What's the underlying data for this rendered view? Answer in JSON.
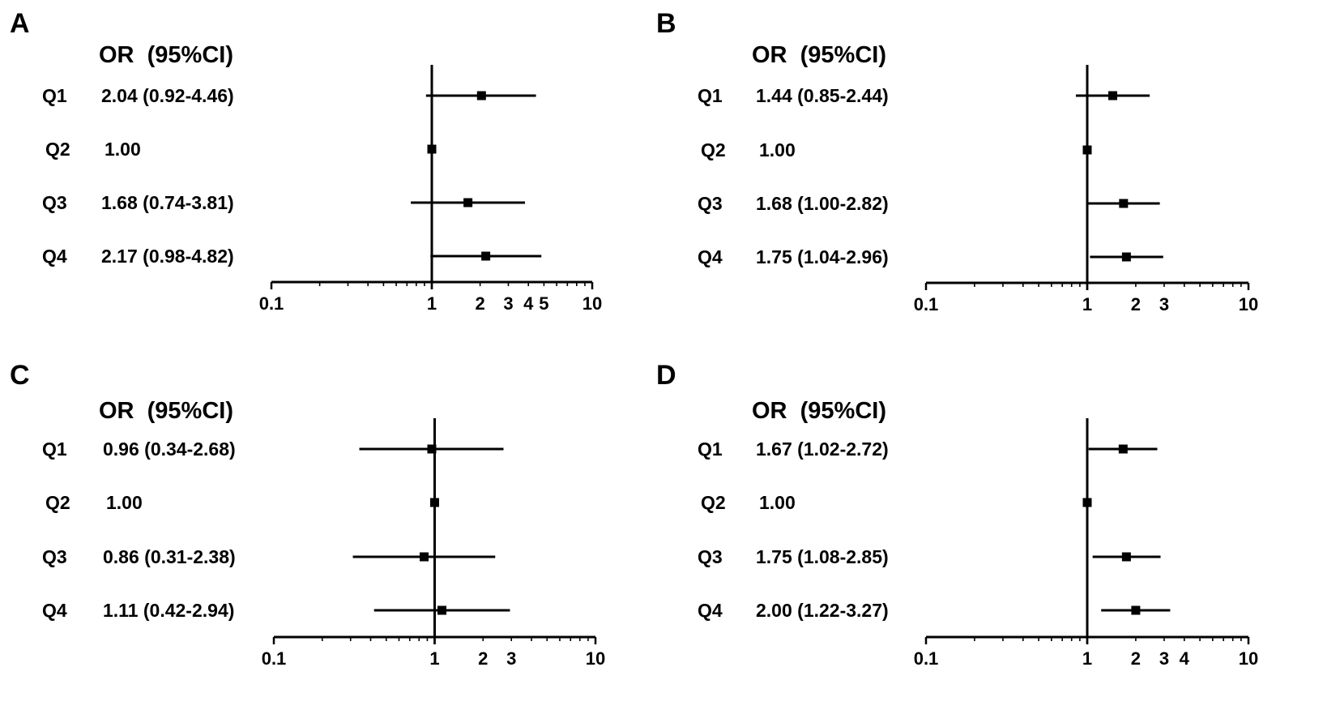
{
  "chart_data": [
    {
      "type": "forest",
      "panel": "A",
      "header": "OR  (95%CI)",
      "scale": "log",
      "xlim": [
        0.1,
        10
      ],
      "reference_line": 1,
      "tick_labels": [
        "0.1",
        "1",
        "2",
        "3",
        "4",
        "5",
        "10"
      ],
      "rows": [
        {
          "label": "Q1",
          "text": "2.04 (0.92-4.46)",
          "or": 2.04,
          "lo": 0.92,
          "hi": 4.46
        },
        {
          "label": "Q2",
          "text": "1.00",
          "or": 1.0,
          "lo": 1.0,
          "hi": 1.0
        },
        {
          "label": "Q3",
          "text": "1.68 (0.74-3.81)",
          "or": 1.68,
          "lo": 0.74,
          "hi": 3.81
        },
        {
          "label": "Q4",
          "text": "2.17 (0.98-4.82)",
          "or": 2.17,
          "lo": 0.98,
          "hi": 4.82
        }
      ]
    },
    {
      "type": "forest",
      "panel": "B",
      "header": "OR  (95%CI)",
      "scale": "log",
      "xlim": [
        0.1,
        10
      ],
      "reference_line": 1,
      "tick_labels": [
        "0.1",
        "1",
        "2",
        "3",
        "10"
      ],
      "rows": [
        {
          "label": "Q1",
          "text": "1.44 (0.85-2.44)",
          "or": 1.44,
          "lo": 0.85,
          "hi": 2.44
        },
        {
          "label": "Q2",
          "text": "1.00",
          "or": 1.0,
          "lo": 1.0,
          "hi": 1.0
        },
        {
          "label": "Q3",
          "text": "1.68 (1.00-2.82)",
          "or": 1.68,
          "lo": 1.0,
          "hi": 2.82
        },
        {
          "label": "Q4",
          "text": "1.75 (1.04-2.96)",
          "or": 1.75,
          "lo": 1.04,
          "hi": 2.96
        }
      ]
    },
    {
      "type": "forest",
      "panel": "C",
      "header": "OR  (95%CI)",
      "scale": "log",
      "xlim": [
        0.1,
        10
      ],
      "reference_line": 1,
      "tick_labels": [
        "0.1",
        "1",
        "2",
        "3",
        "10"
      ],
      "rows": [
        {
          "label": "Q1",
          "text": "0.96 (0.34-2.68)",
          "or": 0.96,
          "lo": 0.34,
          "hi": 2.68
        },
        {
          "label": "Q2",
          "text": "1.00",
          "or": 1.0,
          "lo": 1.0,
          "hi": 1.0
        },
        {
          "label": "Q3",
          "text": "0.86 (0.31-2.38)",
          "or": 0.86,
          "lo": 0.31,
          "hi": 2.38
        },
        {
          "label": "Q4",
          "text": "1.11 (0.42-2.94)",
          "or": 1.11,
          "lo": 0.42,
          "hi": 2.94
        }
      ]
    },
    {
      "type": "forest",
      "panel": "D",
      "header": "OR  (95%CI)",
      "scale": "log",
      "xlim": [
        0.1,
        10
      ],
      "reference_line": 1,
      "tick_labels": [
        "0.1",
        "1",
        "2",
        "3",
        "4",
        "10"
      ],
      "rows": [
        {
          "label": "Q1",
          "text": "1.67 (1.02-2.72)",
          "or": 1.67,
          "lo": 1.02,
          "hi": 2.72
        },
        {
          "label": "Q2",
          "text": "1.00",
          "or": 1.0,
          "lo": 1.0,
          "hi": 1.0
        },
        {
          "label": "Q3",
          "text": "1.75 (1.08-2.85)",
          "or": 1.75,
          "lo": 1.08,
          "hi": 2.85
        },
        {
          "label": "Q4",
          "text": "2.00 (1.22-3.27)",
          "or": 2.0,
          "lo": 1.22,
          "hi": 3.27
        }
      ]
    }
  ]
}
